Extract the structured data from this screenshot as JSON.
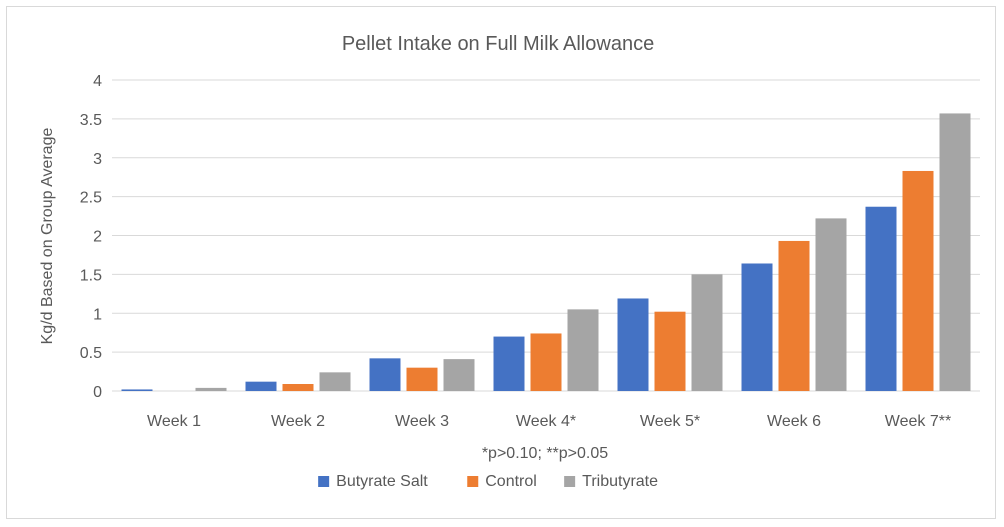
{
  "chart_data": {
    "type": "bar",
    "title": "Pellet Intake on Full Milk Allowance",
    "ylabel": "Kg/d Based on Group Average",
    "xlabel": "*p>0.10; **p>0.05",
    "ylim": [
      0,
      4
    ],
    "yticks": [
      0,
      0.5,
      1,
      1.5,
      2,
      2.5,
      3,
      3.5,
      4
    ],
    "ytick_labels": [
      "0",
      "0.5",
      "1",
      "1.5",
      "2",
      "2.5",
      "3",
      "3.5",
      "4"
    ],
    "grid": true,
    "legend_position": "bottom",
    "categories": [
      "Week 1",
      "Week 2",
      "Week 3",
      "Week 4*",
      "Week 5*",
      "Week 6",
      "Week 7**"
    ],
    "series": [
      {
        "name": "Butyrate Salt",
        "color": "#4472C4",
        "values": [
          0.02,
          0.12,
          0.42,
          0.7,
          1.19,
          1.64,
          2.37
        ]
      },
      {
        "name": "Control",
        "color": "#ED7D31",
        "values": [
          0.0,
          0.09,
          0.3,
          0.74,
          1.02,
          1.93,
          2.83
        ]
      },
      {
        "name": "Tributyrate",
        "color": "#A5A5A5",
        "values": [
          0.04,
          0.24,
          0.41,
          1.05,
          1.5,
          2.22,
          3.57
        ]
      }
    ]
  }
}
